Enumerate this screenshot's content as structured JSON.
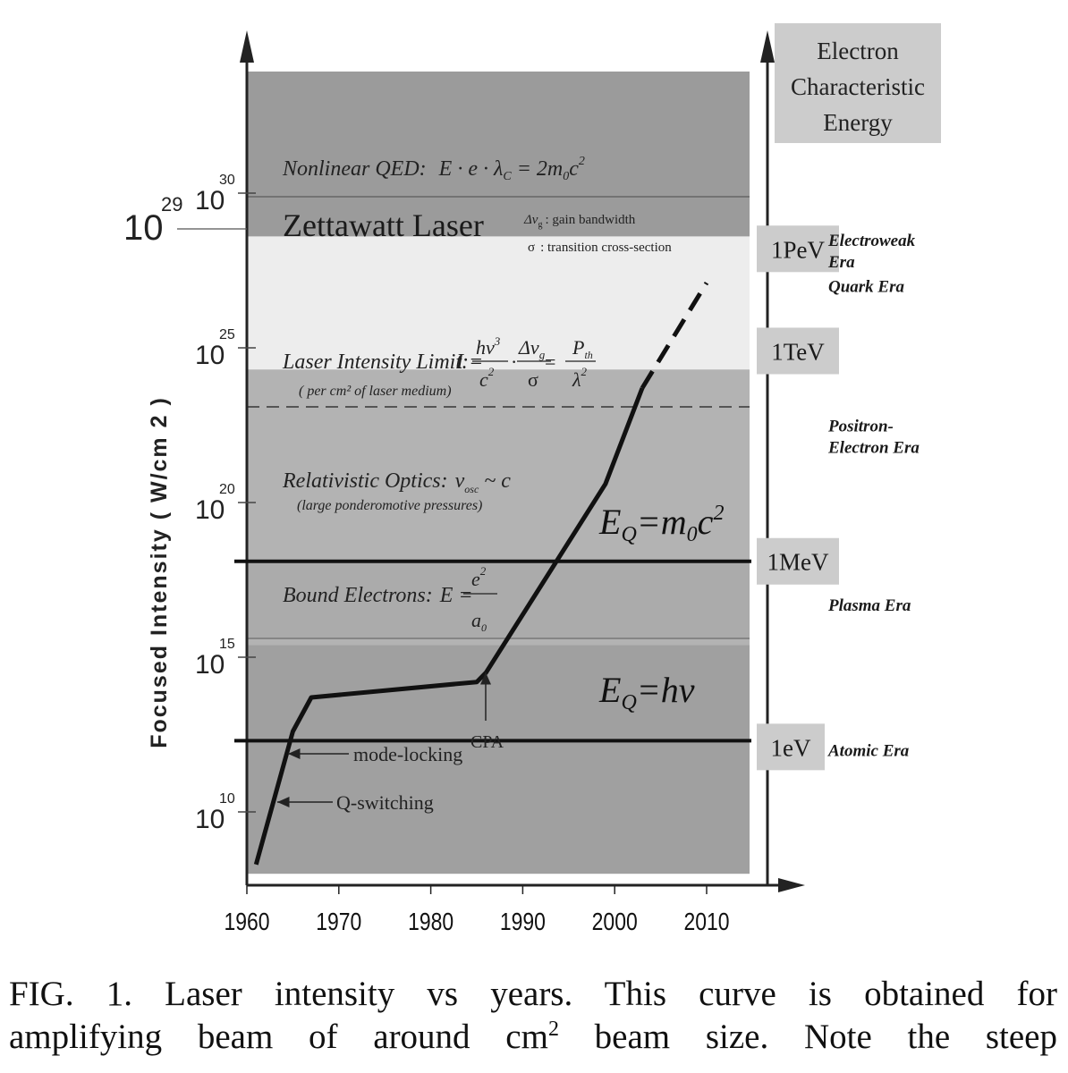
{
  "chart_data": {
    "type": "line",
    "ylabel": "Focused Intensity ( W/cm 2 )",
    "yscale": "log",
    "xlim": [
      1960,
      2015
    ],
    "ylim_exponent": [
      8,
      36
    ],
    "x_ticks": [
      1960,
      1970,
      1980,
      1990,
      2000,
      2010
    ],
    "y_ticks": [
      {
        "base": "10",
        "exp": "10",
        "value_exp": 10
      },
      {
        "base": "10",
        "exp": "15",
        "value_exp": 15
      },
      {
        "base": "10",
        "exp": "20",
        "value_exp": 20
      },
      {
        "base": "10",
        "exp": "25",
        "value_exp": 25
      },
      {
        "base": "10",
        "exp": "30",
        "value_exp": 30
      }
    ],
    "extra_y_label": {
      "base": "10",
      "exp": "29",
      "value_exp": 28.6
    },
    "curve": {
      "solid": [
        [
          1961,
          8.3
        ],
        [
          1965,
          12.6
        ],
        [
          1967,
          13.7
        ],
        [
          1985,
          14.2
        ],
        [
          1986,
          14.5
        ],
        [
          1999,
          20.6
        ],
        [
          2003,
          23.7
        ]
      ],
      "dashed": [
        [
          2003,
          23.7
        ],
        [
          2010,
          27.1
        ]
      ]
    },
    "regions": [
      {
        "label": "Nonlinear QED:",
        "formula": "E · e · λ_C = 2m_0c^2",
        "from_exp": 28.6,
        "to_exp": 36,
        "shade": "#9b9b9b"
      },
      {
        "label": "Zettawatt Laser",
        "from_exp": 24.3,
        "to_exp": 28.6,
        "shade": "#ededed"
      },
      {
        "label": "Relativistic Optics:",
        "note": "(large ponderomotive pressures)",
        "from_exp": 15.4,
        "to_exp": 24.3,
        "shade": "#b3b3b3"
      },
      {
        "label": "",
        "from_exp": 8,
        "to_exp": 15.4,
        "shade": "#a0a0a0"
      }
    ],
    "region_texts": {
      "qed_label": "Nonlinear QED:",
      "qed_E": "E · e · λ",
      "qed_sub": "C",
      "qed_eq": " = 2m",
      "qed_sub0": "0",
      "qed_c": "c",
      "qed_sup": "2",
      "zettawatt": "Zettawatt Laser",
      "gain_sym": "Δν",
      "gain_sub": "g",
      "gain_text": ": gain bandwidth",
      "sigma_sym": "σ",
      "sigma_text": ": transition cross-section",
      "limit_label": "Laser Intensity Limit:",
      "limit_I": "I =",
      "limit_num1": "hν",
      "limit_num1_sup": "3",
      "limit_den1": "c",
      "limit_den1_sup": "2",
      "limit_dot": "·",
      "limit_num2": "Δν",
      "limit_num2_sub": "g",
      "limit_den2": "σ",
      "limit_eq": "=",
      "limit_num3": "P",
      "limit_num3_sub": "th",
      "limit_den3": "λ",
      "limit_den3_sup": "2",
      "limit_note": "( per cm² of laser medium)",
      "rel_label": "Relativistic Optics:",
      "rel_v": "v",
      "rel_sub": "osc",
      "rel_rest": " ~ c",
      "rel_note": "(large ponderomotive pressures)",
      "bound_label": "Bound Electrons:",
      "bound_E": "E =",
      "bound_num": "e",
      "bound_num_sup": "2",
      "bound_den": "a",
      "bound_den_sub": "0",
      "eq_top_E": "E",
      "eq_top_sub": "Q",
      "eq_top_rest": "=m",
      "eq_top_sub0": "0",
      "eq_top_c": "c",
      "eq_top_sup": "2",
      "eq_bot_E": "E",
      "eq_bot_sub": "Q",
      "eq_bot_rest": "=hν"
    },
    "thresholds": [
      {
        "name": "E_Q=m_0c^2",
        "value_exp": 18.1
      },
      {
        "name": "E_Q=hν",
        "value_exp": 12.3
      }
    ],
    "annotations": [
      {
        "text": "mode-locking",
        "x": 1965,
        "y_exp": 11.9
      },
      {
        "text": "Q-switching",
        "x": 1963.5,
        "y_exp": 10.6
      },
      {
        "text": "CPA",
        "x": 1986,
        "y_exp": 14.4
      }
    ],
    "energy_axis": {
      "title": [
        "Electron",
        "Characteristic",
        "Energy"
      ],
      "levels": [
        {
          "label": "1PeV",
          "value_exp": 28.2
        },
        {
          "label": "1TeV",
          "value_exp": 24.9
        },
        {
          "label": "1MeV",
          "value_exp": 18.1
        },
        {
          "label": "1eV",
          "value_exp": 12.1
        }
      ]
    },
    "eras": [
      {
        "line1": "Electroweak",
        "line2": "Era",
        "value_exp": 28.3
      },
      {
        "line1": "Quark Era",
        "line2": "",
        "value_exp": 26.8
      },
      {
        "line1": "Positron-",
        "line2": "Electron Era",
        "value_exp": 22.3
      },
      {
        "line1": "Plasma Era",
        "line2": "",
        "value_exp": 16.5
      },
      {
        "line1": "Atomic Era",
        "line2": "",
        "value_exp": 11.8
      }
    ]
  },
  "caption": {
    "line1": "FIG. 1. Laser intensity vs years. This curve is obtained for",
    "line2_a": "amplifying beam of around cm",
    "line2_sup": "2",
    "line2_b": " beam size. Note the steep"
  }
}
